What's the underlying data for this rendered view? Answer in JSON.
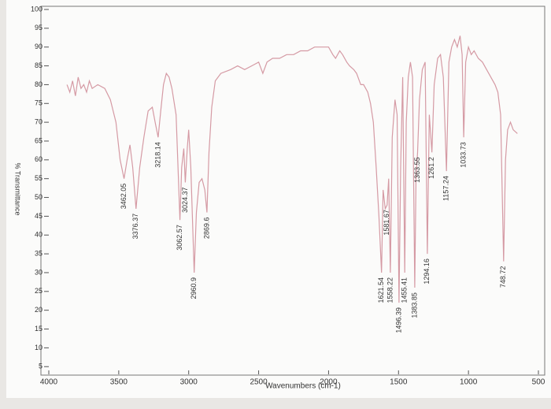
{
  "chart_data": {
    "type": "line",
    "y_label": "% Transmittance",
    "x_label": "Wavenumbers (cm-1)",
    "color": "#d59aa4",
    "xlim": [
      4000,
      500
    ],
    "ylim": [
      4,
      100
    ],
    "xticks": [
      4000,
      3500,
      3000,
      2500,
      2000,
      1500,
      1000,
      500
    ],
    "yticks": [
      5,
      10,
      15,
      20,
      25,
      30,
      35,
      40,
      45,
      50,
      55,
      60,
      65,
      70,
      75,
      80,
      85,
      90,
      95,
      100
    ],
    "x": [
      3870,
      3850,
      3830,
      3810,
      3790,
      3770,
      3750,
      3730,
      3710,
      3690,
      3650,
      3600,
      3560,
      3520,
      3490,
      3462.05,
      3440,
      3420,
      3400,
      3376.37,
      3350,
      3320,
      3290,
      3260,
      3240,
      3218.14,
      3200,
      3180,
      3160,
      3140,
      3120,
      3090,
      3062.57,
      3050,
      3035,
      3024.37,
      3010,
      3000,
      2985,
      2960.9,
      2945,
      2925,
      2905,
      2885,
      2869.6,
      2855,
      2835,
      2810,
      2770,
      2700,
      2650,
      2600,
      2550,
      2500,
      2470,
      2440,
      2400,
      2350,
      2300,
      2250,
      2200,
      2150,
      2100,
      2050,
      2000,
      1970,
      1950,
      1920,
      1900,
      1870,
      1850,
      1820,
      1800,
      1770,
      1750,
      1720,
      1700,
      1680,
      1660,
      1640,
      1621.54,
      1610,
      1595,
      1581.67,
      1570,
      1558.22,
      1545,
      1525,
      1510,
      1496.39,
      1485,
      1470,
      1455.41,
      1445,
      1430,
      1415,
      1400,
      1383.85,
      1375,
      1363.55,
      1350,
      1330,
      1310,
      1294.16,
      1280,
      1261.2,
      1245,
      1220,
      1200,
      1180,
      1157.24,
      1140,
      1120,
      1100,
      1080,
      1060,
      1045,
      1033.73,
      1020,
      1000,
      980,
      960,
      930,
      900,
      870,
      840,
      810,
      790,
      770,
      748.72,
      735,
      720,
      700,
      680,
      650
    ],
    "values": [
      80,
      78,
      81,
      77,
      82,
      79,
      80,
      78,
      81,
      79,
      80,
      79,
      76,
      70,
      60,
      55,
      60,
      64,
      58,
      47,
      58,
      66,
      73,
      74,
      70,
      66,
      73,
      80,
      83,
      82,
      79,
      72,
      44,
      58,
      63,
      54,
      63,
      68,
      58,
      30,
      46,
      54,
      55,
      52,
      46,
      62,
      74,
      81,
      83,
      84,
      85,
      84,
      85,
      86,
      83,
      86,
      87,
      87,
      88,
      88,
      89,
      89,
      90,
      90,
      90,
      88,
      87,
      89,
      88,
      86,
      85,
      84,
      83,
      80,
      80,
      78,
      75,
      70,
      58,
      45,
      30,
      52,
      47,
      48,
      55,
      30,
      66,
      76,
      72,
      22,
      58,
      82,
      30,
      70,
      82,
      86,
      82,
      26,
      55,
      62,
      76,
      84,
      86,
      35,
      72,
      62,
      80,
      87,
      88,
      82,
      57,
      86,
      90,
      92,
      90,
      93,
      88,
      66,
      86,
      90,
      88,
      89,
      87,
      86,
      84,
      82,
      80,
      78,
      72,
      33,
      60,
      68,
      70,
      68,
      67
    ],
    "peaks": [
      3462.05,
      3376.37,
      3218.14,
      3062.57,
      3024.37,
      2960.9,
      2869.6,
      1621.54,
      1581.67,
      1558.22,
      1496.39,
      1455.41,
      1383.85,
      1363.55,
      1294.16,
      1261.2,
      1157.24,
      1033.73,
      748.72
    ]
  }
}
